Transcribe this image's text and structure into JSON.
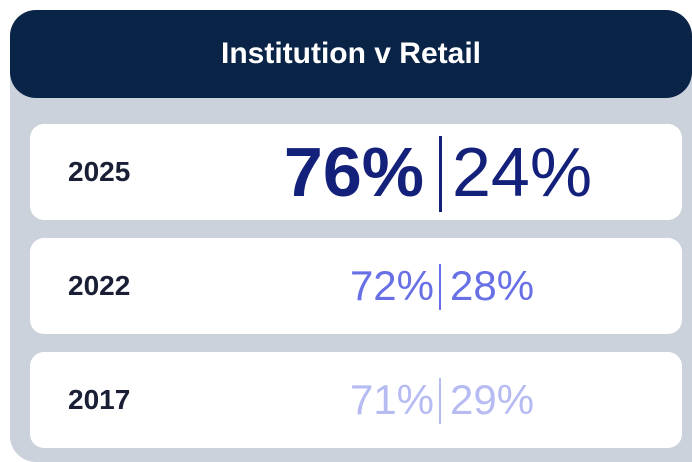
{
  "header": {
    "title": "Institution v Retail"
  },
  "rows": [
    {
      "year": "2025",
      "institution": "76%",
      "retail": "24%"
    },
    {
      "year": "2022",
      "institution": "72%",
      "retail": "28%"
    },
    {
      "year": "2017",
      "institution": "71%",
      "retail": "29%"
    }
  ]
}
